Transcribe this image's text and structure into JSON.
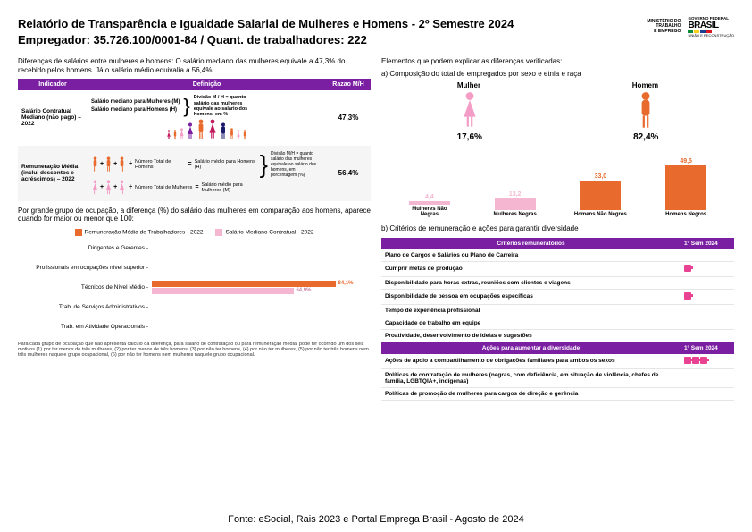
{
  "header": {
    "title_line1": "Relatório de Transparência e Igualdade Salarial de Mulheres e Homens - 2º Semestre 2024",
    "title_line2": "Empregador: 35.726.100/0001-84    /    Quant. de trabalhadores: 222",
    "ministry": "MINISTÉRIO DO\nTRABALHO\nE EMPREGO",
    "gov": "GOVERNO FEDERAL",
    "brasil": "BRASIL",
    "tagline": "UNIÃO E RECONSTRUÇÃO"
  },
  "left": {
    "intro": "Diferenças de salários entre mulheres e homens: O salário mediano das mulheres equivale a 47,3% do recebido pelos homens. Já o salário médio equivalia a 56,4%",
    "table": {
      "headers": {
        "indicador": "Indicador",
        "definicao": "Definição",
        "razao": "Razao M/H"
      },
      "row1": {
        "indicator": "Salário Contratual Mediano (não pago) – 2022",
        "def_m": "Salário mediano para Mulheres (M)",
        "def_h": "Salário mediano para Homens (H)",
        "def_ratio": "Divisão M / H = quanto salário das mulheres equivale ao salário dos homens, em %",
        "razao": "47,3%"
      },
      "row2": {
        "indicator": "Remuneração Média (inclui descontos e acréscimos) – 2022",
        "box1": "Número Total de Homens",
        "box2": "Salário médio para Homens (H)",
        "box3": "Número Total de Mulheres",
        "box4": "Salário médio para Mulheres (M)",
        "def_ratio": "Divisão M/H = quanto salário das mulheres equivale ao salário dos homens, em porcentagem (%)",
        "razao": "56,4%"
      }
    },
    "occ_intro": "Por grande grupo de ocupação, a diferença (%) do salário das mulheres em comparação aos homens, aparece quando for maior ou menor que 100:",
    "occ_legend": {
      "a": "Remuneração Média de Trabalhadores - 2022",
      "b": "Salário Mediano Contratual - 2022",
      "color_a": "#e86a2c",
      "color_b": "#f4b6d0"
    },
    "occ_rows": [
      {
        "label": "Dirigentes e Gerentes",
        "v1": null,
        "v2": null
      },
      {
        "label": "Profissionais em ocupações nível superior",
        "v1": null,
        "v2": null
      },
      {
        "label": "Técnicos de Nível Médio",
        "v1": 84.1,
        "v2": 64.9,
        "v1_label": "84,1%",
        "v2_label": "64,9%"
      },
      {
        "label": "Trab. de Serviços Administrativos",
        "v1": null,
        "v2": null
      },
      {
        "label": "Trab. em Atividade Operacionais",
        "v1": null,
        "v2": null
      }
    ],
    "occ_max": 100,
    "footnote": "Para cada grupo de ocupação que não apresenta cálculo da diferença, para salário de contratação ou para remuneração média, pode ter ocorrido um dos seis motivos (1) por ter menos de três mulheres, (2) por ter menos de três homens, (3) por não ter homens, (4) por não ter mulheres, (5) por não ter três homens nem três mulheres naquele grupo ocupacional, (6) por não ter homens nem mulheres naquele grupo ocupacional."
  },
  "right": {
    "intro": "Elementos que podem explicar as diferenças verificadas:",
    "comp_title": "a) Composição do total de empregados por sexo e etnia e raça",
    "gender": {
      "mulher_label": "Mulher",
      "homem_label": "Homem",
      "mulher_pct": "17,6%",
      "homem_pct": "82,4%",
      "mulher_color": "#f39cc5",
      "homem_color": "#e86a2c"
    },
    "race_chart": {
      "max": 60,
      "bars": [
        {
          "label": "Mulheres Não Negras",
          "value": 4.4,
          "value_label": "4,4",
          "color": "#f4b6d0"
        },
        {
          "label": "Mulheres Negras",
          "value": 13.2,
          "value_label": "13,2",
          "color": "#f4b6d0"
        },
        {
          "label": "Homens Não Negros",
          "value": 33.0,
          "value_label": "33,0",
          "color": "#e86a2c"
        },
        {
          "label": "Homens Negros",
          "value": 49.5,
          "value_label": "49,5",
          "color": "#e86a2c"
        }
      ]
    },
    "crit_title": "b) Critérios de remuneração e ações para garantir diversidade",
    "crit_headers": {
      "a": "Critérios remuneratórios",
      "b": "1º Sem 2024"
    },
    "crit_rows": [
      {
        "text": "Plano de Cargos e Salários ou Plano de Carreira",
        "flags": 0
      },
      {
        "text": "Cumprir metas de produção",
        "flags": 1
      },
      {
        "text": "Disponibilidade para horas extras, reuniões com clientes e viagens",
        "flags": 0
      },
      {
        "text": "Disponibilidade de pessoa em ocupações específicas",
        "flags": 1
      },
      {
        "text": "Tempo de experiência profissional",
        "flags": 0
      },
      {
        "text": "Capacidade de trabalho em equipe",
        "flags": 0
      },
      {
        "text": "Proatividade, desenvolvimento de ideias e sugestões",
        "flags": 0
      }
    ],
    "div_headers": {
      "a": "Ações para aumentar a diversidade",
      "b": "1º Sem 2024"
    },
    "div_rows": [
      {
        "text": "Ações de apoio a compartilhamento de obrigações familiares para ambos os sexos",
        "flags": 3
      },
      {
        "text": "Políticas de contratação de mulheres (negras, com deficiência, em situação de violência, chefes de família, LGBTQIA+, indígenas)",
        "flags": 0
      },
      {
        "text": "Políticas de promoção de mulheres para cargos de direção e gerência",
        "flags": 0
      }
    ]
  },
  "source": "Fonte: eSocial, Rais 2023 e Portal Emprega Brasil - Agosto de 2024",
  "colors": {
    "purple": "#7a1fa2",
    "orange": "#e86a2c",
    "pink": "#f4b6d0",
    "magenta": "#c2185b"
  }
}
